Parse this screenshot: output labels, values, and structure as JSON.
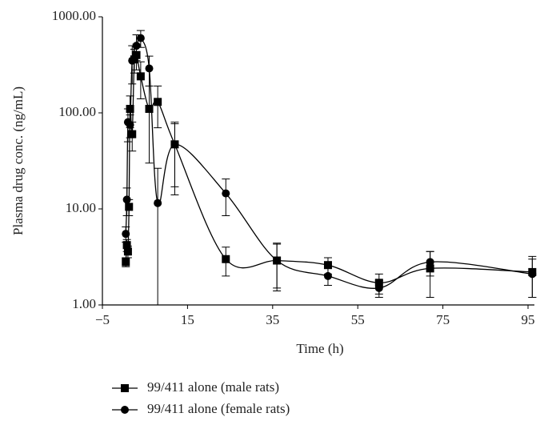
{
  "chart_data": {
    "type": "line",
    "x_label": "Time (h)",
    "y_label": "Plasma drug conc. (ng/mL)",
    "yscale": "log",
    "xlim": [
      -5,
      96.5
    ],
    "ylim": [
      1,
      1000
    ],
    "xticks": [
      {
        "value": -5,
        "label": "−5"
      },
      15,
      35,
      55,
      75,
      95
    ],
    "yticks": [
      {
        "value": 1,
        "label": "1.00"
      },
      {
        "value": 10,
        "label": "10.00"
      },
      {
        "value": 100,
        "label": "100.00"
      },
      {
        "value": 1000,
        "label": "1000.00"
      }
    ],
    "series": [
      {
        "name": "99/411 alone (male rats)",
        "color": "#000000",
        "marker": "square",
        "x": [
          0.5,
          0.75,
          1,
          1.25,
          1.5,
          2,
          2.5,
          3,
          4,
          6,
          8,
          12,
          24,
          36,
          48,
          60,
          72,
          96
        ],
        "values": [
          2.8,
          4.2,
          3.6,
          10.5,
          110,
          60,
          360,
          400,
          240,
          110,
          130,
          47,
          3.0,
          2.9,
          2.6,
          1.7,
          2.4,
          2.2
        ],
        "errors": [
          0.3,
          0.6,
          0.5,
          2,
          40,
          20,
          100,
          120,
          100,
          80,
          60,
          33,
          1.0,
          1.5,
          0.5,
          0.4,
          1.2,
          1.0
        ]
      },
      {
        "name": "99/411 alone (female rats)",
        "color": "#000000",
        "marker": "circle",
        "x": [
          0.5,
          0.75,
          1,
          1.5,
          2,
          3,
          4,
          6,
          8,
          12,
          24,
          36,
          48,
          60,
          72,
          96
        ],
        "values": [
          5.5,
          12.5,
          80,
          75,
          350,
          500,
          600,
          290,
          11.5,
          47,
          14.5,
          2.9,
          2.0,
          1.5,
          2.8,
          2.1
        ],
        "errors": [
          1,
          4,
          30,
          20,
          150,
          150,
          120,
          100,
          15,
          30,
          6,
          1.4,
          0.4,
          0.3,
          0.8,
          0.9
        ]
      }
    ]
  }
}
